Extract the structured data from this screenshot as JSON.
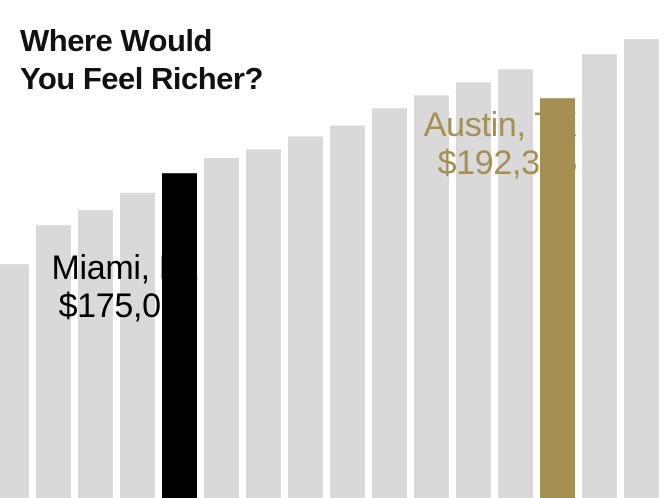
{
  "title_lines": [
    "Where Would",
    "You Feel Richer?"
  ],
  "callouts": {
    "miami": {
      "city": "Miami, FL",
      "amount": "$175,000"
    },
    "austin": {
      "city": "Austin, TX",
      "amount": "$192,325"
    }
  },
  "colors": {
    "bar_default": "#d9d9d9",
    "miami": "#000000",
    "austin": "#a58f52",
    "title": "#111111"
  },
  "chart_data": {
    "type": "bar",
    "title": "Where Would You Feel Richer?",
    "xlabel": "",
    "ylabel": "",
    "grid": false,
    "legend": "none",
    "ylim": [
      100000,
      215000
    ],
    "categories": [
      "",
      "",
      "",
      "",
      "Miami, FL",
      "",
      "",
      "",
      "",
      "",
      "",
      "",
      "",
      "Austin, TX",
      "",
      ""
    ],
    "values": [
      154000,
      163000,
      166500,
      170500,
      175000,
      178500,
      180500,
      183500,
      186000,
      190000,
      193000,
      196000,
      199000,
      192325,
      202500,
      206000
    ],
    "highlights": [
      {
        "index": 4,
        "label": "Miami, FL",
        "value_label": "$175,000",
        "color": "#000000"
      },
      {
        "index": 13,
        "label": "Austin, TX",
        "value_label": "$192,325",
        "color": "#a58f52"
      }
    ]
  }
}
